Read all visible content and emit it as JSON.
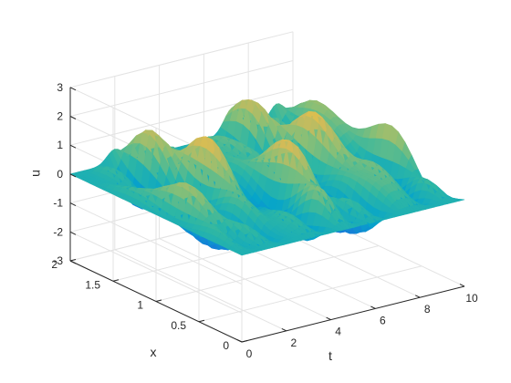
{
  "chart_data": {
    "type": "surface",
    "title": "",
    "xlabel": "t",
    "ylabel": "x",
    "zlabel": "u",
    "xlim": [
      0,
      10
    ],
    "ylim": [
      0,
      2
    ],
    "zlim": [
      -3,
      3
    ],
    "xticks": [
      "0",
      "2",
      "4",
      "6",
      "8",
      "10"
    ],
    "yticks": [
      "0",
      "0.5",
      "1",
      "1.5",
      "2"
    ],
    "zticks": [
      "-3",
      "-2",
      "-1",
      "0",
      "1",
      "2",
      "3"
    ],
    "grid": true,
    "box": false,
    "colormap": "parula",
    "colormap_stops": [
      "#352a87",
      "#0f5cdd",
      "#1481d6",
      "#06a4ca",
      "#2eb7a4",
      "#87bf77",
      "#d1bb59",
      "#fec832",
      "#f9fb0e"
    ],
    "surface_function": "u(t,x) = sum of traveling/standing waves; u(0,x)=0, u(t,0)=0; values span approx -2.3 to 2.9",
    "peaks_approx": [
      {
        "t": 7.3,
        "x": 2.0,
        "u": 2.9
      },
      {
        "t": 9.4,
        "x": 2.0,
        "u": 2.4
      },
      {
        "t": 2.0,
        "x": 2.0,
        "u": 2.3
      },
      {
        "t": 0.9,
        "x": 1.45,
        "u": -2.2
      }
    ]
  }
}
